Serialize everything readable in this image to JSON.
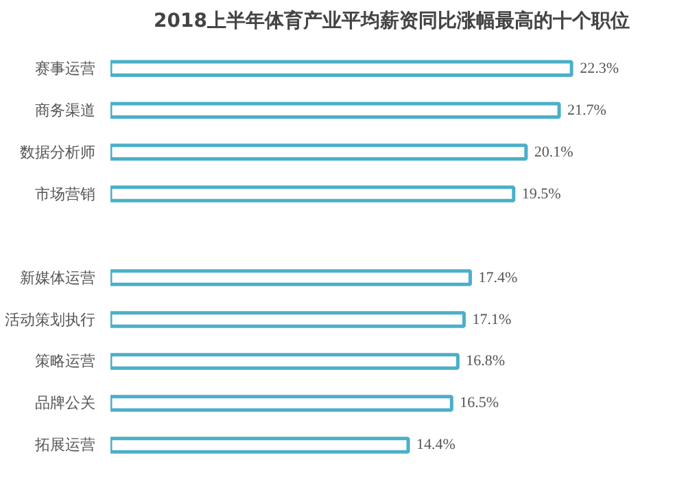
{
  "chart_data": {
    "type": "bar",
    "orientation": "horizontal",
    "title": "2018上半年体育产业平均薪资同比涨幅最高的十个职位",
    "categories": [
      "赛事运营",
      "商务渠道",
      "数据分析师",
      "市场营销",
      null,
      "新媒体运营",
      "活动策划执行",
      "策略运营",
      "品牌公关",
      "拓展运营"
    ],
    "values": [
      22.3,
      21.7,
      20.1,
      19.5,
      null,
      17.4,
      17.1,
      16.8,
      16.5,
      14.4
    ],
    "value_labels": [
      "22.3%",
      "21.7%",
      "20.1%",
      "19.5%",
      null,
      "17.4%",
      "17.1%",
      "16.8%",
      "16.5%",
      "14.4%"
    ],
    "color": "#4bafc8",
    "grid": false
  }
}
